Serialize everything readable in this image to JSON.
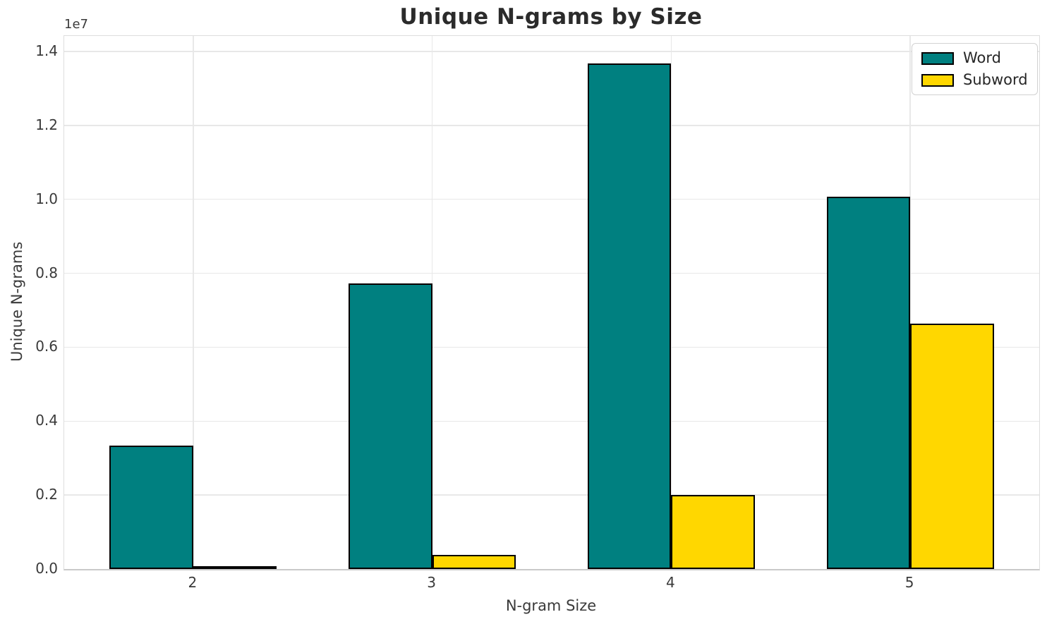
{
  "chart_data": {
    "type": "bar",
    "title": "Unique N-grams by Size",
    "xlabel": "N-gram Size",
    "ylabel": "Unique N-grams",
    "y_offset_label": "1e7",
    "categories": [
      "2",
      "3",
      "4",
      "5"
    ],
    "series": [
      {
        "name": "Word",
        "color": "#008080",
        "edge_color": "#000000",
        "values": [
          3340000,
          7730000,
          13680000,
          10070000
        ]
      },
      {
        "name": "Subword",
        "color": "#FFD700",
        "edge_color": "#000000",
        "values": [
          50000,
          380000,
          2000000,
          6640000
        ]
      }
    ],
    "ylim": [
      0,
      14420000
    ],
    "xlim": [
      -0.54,
      3.54
    ],
    "bar_width_units": 0.35,
    "ytick_values": [
      0,
      2000000,
      4000000,
      6000000,
      8000000,
      10000000,
      12000000,
      14000000
    ],
    "ytick_labels": [
      "0.0",
      "0.2",
      "0.4",
      "0.6",
      "0.8",
      "1.0",
      "1.2",
      "1.4"
    ],
    "grid": true,
    "legend_position": "upper right"
  }
}
